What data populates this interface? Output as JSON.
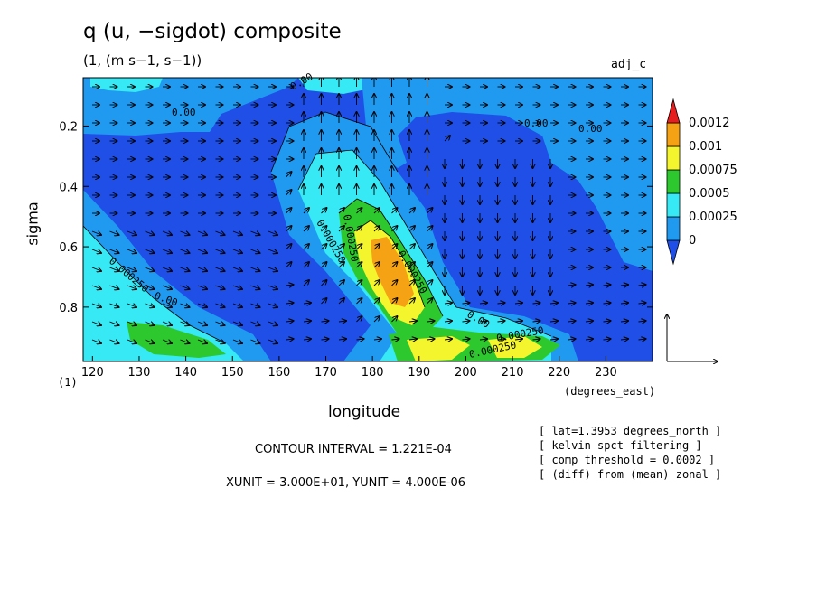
{
  "chart_data": {
    "type": "heatmap",
    "title": "q (u, −sigdot) composite",
    "subtitle": "(1, (m s−1, s−1))",
    "tag": "adj_c",
    "xlabel": "longitude",
    "xunit": "(degrees_east)",
    "ylabel": "sigma",
    "yunit": "(1)",
    "xlim": [
      118,
      240
    ],
    "ylim": [
      0.04,
      0.98
    ],
    "x_ticks": [
      120,
      130,
      140,
      150,
      160,
      170,
      180,
      190,
      200,
      210,
      220,
      230
    ],
    "y_ticks": [
      0.2,
      0.4,
      0.6,
      0.8
    ],
    "y_reversed": true,
    "colorbar": {
      "levels": [
        "0.0012",
        "0.001",
        "0.00075",
        "0.0005",
        "0.00025",
        "0"
      ],
      "colors": [
        "#1f4fe6",
        "#1f9af0",
        "#37e8f5",
        "#2dc82d",
        "#f5f52d",
        "#f5a214",
        "#e61e1e"
      ]
    },
    "contour_labels": [
      "0.00",
      "0.00",
      "0.00",
      "0.00",
      "0.000250",
      "0.000250",
      "0.000250",
      "0.000250",
      "0.00",
      "0.00",
      "0.000250",
      "0.000250"
    ],
    "contour_interval": "CONTOUR INTERVAL = 1.221E-04",
    "vector_units": "XUNIT = 3.000E+01, YUNIT = 4.000E-06",
    "notes": [
      "[ lat=1.3953 degrees_north ]",
      "[ kelvin spct filtering ]",
      "[ comp threshold = 0.0002 ]",
      "[ (diff) from (mean) zonal ]"
    ]
  }
}
